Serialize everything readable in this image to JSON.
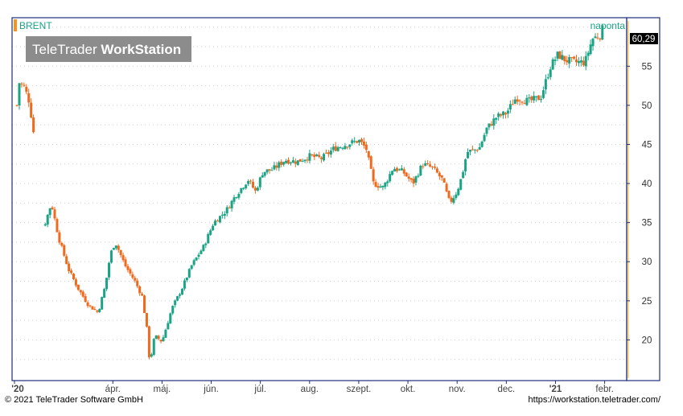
{
  "chart_data": {
    "type": "candlestick",
    "title": "BRENT",
    "interval": "naponta",
    "watermark": {
      "brand": "TeleTrader",
      "product": "WorkStation"
    },
    "last_value_label": "60,29",
    "ylim": [
      15,
      61
    ],
    "y_ticks": [
      20,
      25,
      30,
      35,
      40,
      45,
      50,
      55
    ],
    "y_axis_position": "right",
    "grid": true,
    "x_tick_labels": [
      "'20",
      "ápr.",
      "máj.",
      "jún.",
      "júl.",
      "aug.",
      "szept.",
      "okt.",
      "nov.",
      "dec.",
      "'21",
      "febr."
    ],
    "bold_x_ticks": [
      "'20",
      "'21"
    ],
    "x_tick_positions": [
      0,
      2,
      3,
      4,
      5,
      6,
      7,
      8,
      9,
      10,
      11,
      12
    ],
    "x_domain_months": [
      0,
      12.35
    ],
    "up_color": "#1aa385",
    "down_color": "#f06a1e",
    "accent_color": "#f7941d",
    "axis_color": "#1f2d7a",
    "closes": [
      {
        "m": 0.05,
        "c": 50.0
      },
      {
        "m": 0.1,
        "c": 53.0
      },
      {
        "m": 0.2,
        "c": 52.3
      },
      {
        "m": 0.3,
        "c": 50.5
      },
      {
        "m": 0.4,
        "c": 46.0
      },
      {
        "m": 0.6,
        "c": 34.5
      },
      {
        "m": 0.75,
        "c": 37.5
      },
      {
        "m": 0.9,
        "c": 33.0
      },
      {
        "m": 1.1,
        "c": 29.0
      },
      {
        "m": 1.3,
        "c": 26.5
      },
      {
        "m": 1.5,
        "c": 24.5
      },
      {
        "m": 1.7,
        "c": 23.5
      },
      {
        "m": 1.85,
        "c": 27.0
      },
      {
        "m": 1.95,
        "c": 31.0
      },
      {
        "m": 2.05,
        "c": 32.5
      },
      {
        "m": 2.25,
        "c": 29.5
      },
      {
        "m": 2.45,
        "c": 27.5
      },
      {
        "m": 2.6,
        "c": 25.5
      },
      {
        "m": 2.7,
        "c": 21.0
      },
      {
        "m": 2.75,
        "c": 17.0
      },
      {
        "m": 2.85,
        "c": 20.5
      },
      {
        "m": 3.0,
        "c": 19.8
      },
      {
        "m": 3.2,
        "c": 24.0
      },
      {
        "m": 3.4,
        "c": 26.5
      },
      {
        "m": 3.6,
        "c": 29.5
      },
      {
        "m": 3.85,
        "c": 32.0
      },
      {
        "m": 4.05,
        "c": 35.0
      },
      {
        "m": 4.3,
        "c": 36.5
      },
      {
        "m": 4.5,
        "c": 38.5
      },
      {
        "m": 4.75,
        "c": 40.5
      },
      {
        "m": 4.9,
        "c": 39.0
      },
      {
        "m": 5.05,
        "c": 41.5
      },
      {
        "m": 5.25,
        "c": 41.8
      },
      {
        "m": 5.5,
        "c": 43.0
      },
      {
        "m": 5.75,
        "c": 42.8
      },
      {
        "m": 6.0,
        "c": 43.5
      },
      {
        "m": 6.25,
        "c": 43.2
      },
      {
        "m": 6.5,
        "c": 44.5
      },
      {
        "m": 6.75,
        "c": 45.0
      },
      {
        "m": 7.0,
        "c": 45.5
      },
      {
        "m": 7.15,
        "c": 44.5
      },
      {
        "m": 7.3,
        "c": 40.0
      },
      {
        "m": 7.5,
        "c": 39.5
      },
      {
        "m": 7.7,
        "c": 42.0
      },
      {
        "m": 7.9,
        "c": 41.5
      },
      {
        "m": 8.1,
        "c": 40.0
      },
      {
        "m": 8.3,
        "c": 42.5
      },
      {
        "m": 8.5,
        "c": 42.0
      },
      {
        "m": 8.7,
        "c": 40.5
      },
      {
        "m": 8.85,
        "c": 37.5
      },
      {
        "m": 9.0,
        "c": 39.0
      },
      {
        "m": 9.1,
        "c": 41.0
      },
      {
        "m": 9.2,
        "c": 44.0
      },
      {
        "m": 9.45,
        "c": 44.5
      },
      {
        "m": 9.6,
        "c": 47.0
      },
      {
        "m": 9.8,
        "c": 48.5
      },
      {
        "m": 10.0,
        "c": 49.0
      },
      {
        "m": 10.2,
        "c": 51.0
      },
      {
        "m": 10.45,
        "c": 50.5
      },
      {
        "m": 10.7,
        "c": 51.0
      },
      {
        "m": 10.9,
        "c": 55.0
      },
      {
        "m": 11.05,
        "c": 56.5
      },
      {
        "m": 11.2,
        "c": 55.8
      },
      {
        "m": 11.4,
        "c": 55.5
      },
      {
        "m": 11.6,
        "c": 55.5
      },
      {
        "m": 11.75,
        "c": 58.5
      },
      {
        "m": 11.9,
        "c": 59.0
      },
      {
        "m": 12.0,
        "c": 60.29
      }
    ]
  },
  "footer": {
    "copyright": "© 2021 TeleTrader Software GmbH",
    "source_url": "https://workstation.teletrader.com/"
  }
}
